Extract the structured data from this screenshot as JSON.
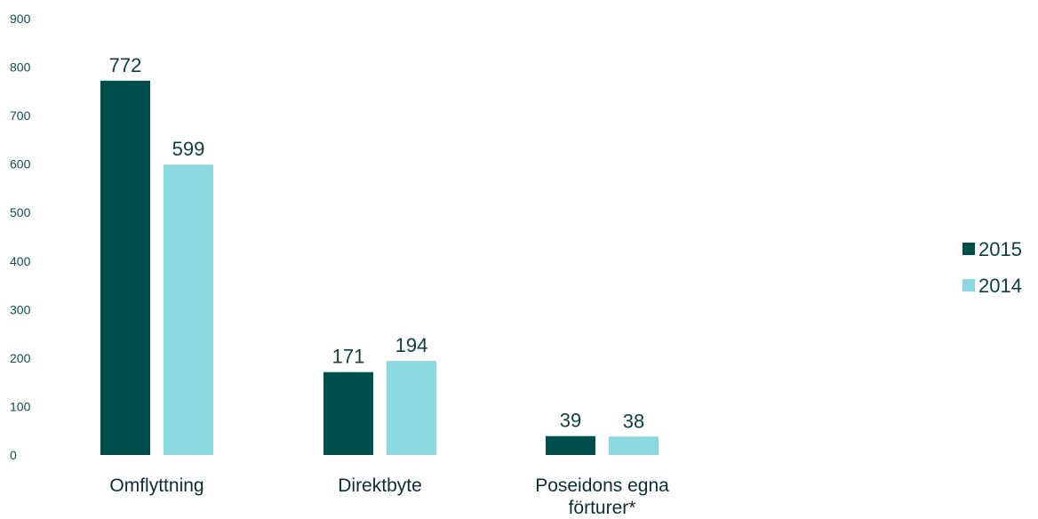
{
  "chart_data": {
    "type": "bar",
    "categories": [
      "Omflyttning",
      "Direktbyte",
      "Poseidons egna förturer*"
    ],
    "series": [
      {
        "name": "2015",
        "color": "#004f4f",
        "values": [
          772,
          171,
          39
        ]
      },
      {
        "name": "2014",
        "color": "#8bd9e0",
        "values": [
          599,
          194,
          38
        ]
      }
    ],
    "ylim": [
      0,
      900
    ],
    "yticks": [
      0,
      100,
      200,
      300,
      400,
      500,
      600,
      700,
      800,
      900
    ],
    "grid": false,
    "legend_position": "right",
    "data_labels": true
  }
}
